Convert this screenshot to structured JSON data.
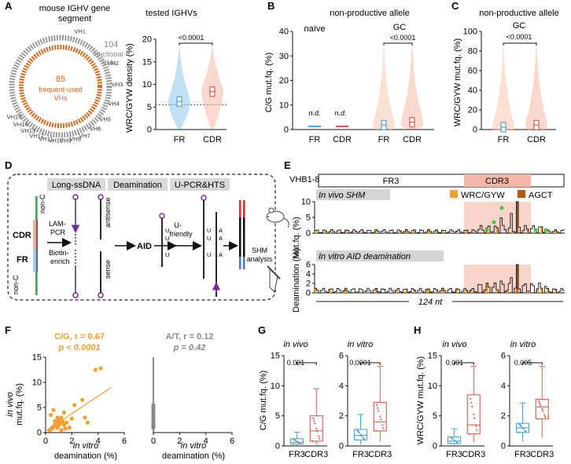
{
  "panels": {
    "A": "A",
    "B": "B",
    "C": "C",
    "D": "D",
    "E": "E",
    "F": "F",
    "G": "G",
    "H": "H"
  },
  "panel_a": {
    "title_line1": "mouse IGHV gene",
    "title_line2": "segment",
    "functional_count": "104",
    "functional_label1": "functional",
    "functional_label2": "VHs",
    "frequent_count": "85",
    "frequent_label1": "frequent-used",
    "frequent_label2": "VHs",
    "family_labels": [
      "VH1",
      "VH2",
      "VH3",
      "VH4",
      "VH5",
      "VH6",
      "VH7",
      "VH8",
      "VH9",
      "VH10",
      "VH11",
      "VH12",
      "VH13",
      "VH14",
      "VH15"
    ],
    "chart_title": "tested IGHVs",
    "pvalue": "<0.0001"
  },
  "panel_b": {
    "title": "non-productive allele",
    "naive": "naïve",
    "gc": "GC",
    "pvalue": "<0.0001",
    "nd": "n.d."
  },
  "panel_c": {
    "title": "non-productive allele",
    "gc": "GC",
    "pvalue": "<0.0001"
  },
  "panel_d": {
    "step_long": "Long-ssDNA",
    "step_deam": "Deamination",
    "step_pcr": "U-PCR&HTS",
    "nonc_top": "non-C",
    "nonc_bot": "non-C",
    "cdr": "CDR",
    "fr": "FR",
    "lampcr1": "LAM-",
    "lampcr2": "PCR",
    "biotin1": "Biotin-",
    "biotin2": "enrich",
    "antisense": "antisense",
    "sense": "sense",
    "aid": "AID",
    "ufriendly1": "U-",
    "ufriendly2": "friendly",
    "u": "U",
    "a": "A",
    "shm1": "SHM",
    "shm2": "analysis"
  },
  "panel_e": {
    "gene": "VHB1-8",
    "fr3": "FR3",
    "cdr3": "CDR3",
    "invivo": "In vivo SHM",
    "invitro": "In vitro AID deamination",
    "legend_wrc": "WRC/GYW",
    "legend_agct": "AGCT",
    "ylab_top": "Mut.fq. (%)",
    "ylab_bot": "Deamination (%)",
    "span": "124 nt"
  },
  "panel_f": {
    "cg_title": "C/G, r = 0.67",
    "cg_p": "p < 0.0001",
    "at_title": "A/T, r = 0.12",
    "at_p": "p = 0.42",
    "ylab1": "in vivo",
    "ylab2": "mut.fq. (%)",
    "xlab1": "in vitro",
    "xlab2": "deamination (%)"
  },
  "panel_g": {
    "invivo": "in vivo",
    "invitro": "in vitro",
    "p1": "0.001",
    "p2": "0.0001",
    "ylabel": "C/G mut.fq. (%)"
  },
  "panel_h": {
    "invivo": "in vivo",
    "invitro": "in vitro",
    "p1": "0.001",
    "p2": "0.005",
    "ylabel": "WRC/GYW mut.fq. (%)"
  },
  "colors": {
    "fr": "#4ea3d8",
    "cdr": "#e05a50",
    "orange": "#f0a030",
    "dark_orange": "#d2691e",
    "light_red": "#f5b8a8"
  },
  "chart_data": [
    {
      "type": "violin",
      "title": "tested IGHVs",
      "ylabel": "WRC/GYW density (%)",
      "categories": [
        "FR",
        "CDR"
      ],
      "medians": [
        6.2,
        8.4
      ],
      "ylim": [
        0,
        20
      ],
      "yticks": [
        0,
        5,
        10,
        15,
        20
      ]
    },
    {
      "type": "violin",
      "title": "non-productive allele",
      "ylabel": "C/G mut.fq. (%)",
      "categories": [
        "FR",
        "CDR",
        "FR",
        "CDR"
      ],
      "groups": [
        "naïve",
        "naïve",
        "GC",
        "GC"
      ],
      "medians": [
        0,
        0,
        1.8,
        3.0
      ],
      "ylim": [
        0,
        40
      ],
      "yticks": [
        0,
        10,
        20,
        30,
        40
      ]
    },
    {
      "type": "violin",
      "title": "non-productive allele",
      "ylabel": "WRC/GYW mut.fq. (%)",
      "categories": [
        "FR",
        "CDR"
      ],
      "medians": [
        2.5,
        4.5
      ],
      "ylim": [
        0,
        100
      ],
      "yticks": [
        0,
        20,
        40,
        60,
        80,
        100
      ]
    },
    {
      "type": "bar",
      "title": "In vivo SHM",
      "ylabel": "Mut.fq. (%)",
      "ylim": [
        0,
        10
      ],
      "yticks": [
        0,
        5,
        10
      ]
    },
    {
      "type": "bar",
      "title": "In vitro AID deamination",
      "ylabel": "Deamination (%)",
      "ylim": [
        0,
        6
      ],
      "yticks": [
        0,
        2,
        4,
        6
      ]
    },
    {
      "type": "scatter",
      "title": "C/G, r = 0.67",
      "xlabel": "in vitro deamination (%)",
      "ylabel": "in vivo mut.fq. (%)",
      "xlim": [
        0,
        6
      ],
      "ylim": [
        0,
        15
      ],
      "xticks": [
        0,
        2,
        4,
        6
      ],
      "yticks": [
        0,
        5,
        10,
        15
      ],
      "x": [
        0.3,
        0.5,
        0.6,
        0.7,
        0.8,
        0.9,
        1.0,
        1.1,
        1.2,
        1.3,
        1.4,
        1.5,
        1.6,
        0.4,
        0.6,
        0.9,
        1.2,
        1.8,
        2.0,
        2.2,
        2.8,
        3.0,
        3.2,
        3.8,
        4.2,
        1.0,
        0.7,
        1.4,
        0.5
      ],
      "y": [
        0.5,
        0.8,
        1.2,
        1.5,
        2.0,
        1.0,
        2.5,
        1.8,
        3.0,
        2.2,
        1.5,
        0.8,
        2.0,
        3.5,
        4.5,
        3.0,
        0.5,
        1.0,
        2.8,
        5.5,
        6.5,
        3.0,
        2.0,
        12.5,
        12.8,
        1.5,
        2.3,
        4.0,
        1.0
      ]
    },
    {
      "type": "scatter",
      "title": "A/T, r = 0.12",
      "xlabel": "in vitro deamination (%)",
      "xlim": [
        0,
        6
      ],
      "ylim": [
        0,
        15
      ],
      "xticks": [
        0,
        2,
        4,
        6
      ],
      "x": [
        0,
        0,
        0,
        0,
        0,
        0,
        0,
        0,
        0,
        0,
        0,
        0
      ],
      "y": [
        1.0,
        1.5,
        2.0,
        2.5,
        3.0,
        3.5,
        4.0,
        4.5,
        5.0,
        5.5,
        1.2,
        2.8
      ]
    },
    {
      "type": "box",
      "title": "in vivo",
      "ylabel": "C/G mut.fq. (%)",
      "categories": [
        "FR3",
        "CDR3"
      ],
      "medians": [
        0.6,
        2.5
      ],
      "q1": [
        0.3,
        0.8
      ],
      "q3": [
        1.2,
        5.0
      ],
      "ylim": [
        0,
        15
      ],
      "yticks": [
        0,
        5,
        10,
        15
      ]
    },
    {
      "type": "box",
      "title": "in vitro",
      "categories": [
        "FR3",
        "CDR3"
      ],
      "medians": [
        0.7,
        1.6
      ],
      "q1": [
        0.4,
        1.0
      ],
      "q3": [
        1.1,
        2.9
      ],
      "ylim": [
        0,
        6
      ],
      "yticks": [
        0,
        2,
        4,
        6
      ]
    },
    {
      "type": "box",
      "title": "in vivo",
      "ylabel": "WRC/GYW mut.fq. (%)",
      "categories": [
        "FR3",
        "CDR3"
      ],
      "medians": [
        0.8,
        3.5
      ],
      "q1": [
        0.4,
        2.0
      ],
      "q3": [
        1.5,
        8.5
      ],
      "ylim": [
        0,
        15
      ],
      "yticks": [
        0,
        5,
        10,
        15
      ]
    },
    {
      "type": "box",
      "title": "in vitro",
      "categories": [
        "FR3",
        "CDR3"
      ],
      "medians": [
        1.2,
        2.6
      ],
      "q1": [
        0.9,
        1.8
      ],
      "q3": [
        1.5,
        3.1
      ],
      "ylim": [
        0,
        6
      ],
      "yticks": [
        0,
        2,
        4,
        6
      ]
    }
  ]
}
